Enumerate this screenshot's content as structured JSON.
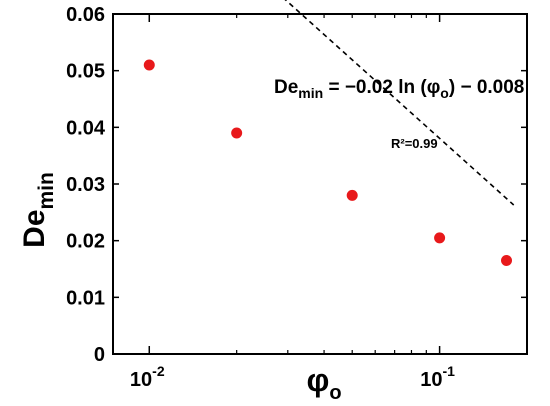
{
  "chart_data": {
    "type": "scatter",
    "x_scale": "log",
    "xlim": [
      0.0075,
      0.2
    ],
    "ylim": [
      0,
      0.06
    ],
    "y_ticks": [
      {
        "value": 0,
        "label": "0"
      },
      {
        "value": 0.01,
        "label": "0.01"
      },
      {
        "value": 0.02,
        "label": "0.02"
      },
      {
        "value": 0.03,
        "label": "0.03"
      },
      {
        "value": 0.04,
        "label": "0.04"
      },
      {
        "value": 0.05,
        "label": "0.05"
      },
      {
        "value": 0.06,
        "label": "0.06"
      }
    ],
    "x_major_ticks": [
      {
        "value": 0.01,
        "base": "10",
        "exp": "-2"
      },
      {
        "value": 0.1,
        "base": "10",
        "exp": "-1"
      }
    ],
    "x_minor_ticks": [
      0.02,
      0.03,
      0.04,
      0.05,
      0.06,
      0.07,
      0.08,
      0.09,
      0.2
    ],
    "xlabel": {
      "main": "φ",
      "sub": "o"
    },
    "ylabel": {
      "main": "De",
      "sub": "min"
    },
    "series": [
      {
        "color": "#e8191b",
        "points": [
          {
            "x": 0.01,
            "y": 0.051
          },
          {
            "x": 0.02,
            "y": 0.039
          },
          {
            "x": 0.05,
            "y": 0.028
          },
          {
            "x": 0.1,
            "y": 0.0205
          },
          {
            "x": 0.17,
            "y": 0.0165
          }
        ]
      }
    ],
    "fit_line": {
      "slope": -0.02,
      "intercept": -0.008,
      "x_range": [
        0.0085,
        0.18
      ],
      "style": "dashed",
      "color": "#000000"
    },
    "annotations": {
      "equation": {
        "de": "De",
        "de_sub": "min",
        "body": " = −0.02 ln (",
        "phi": "φ",
        "phi_sub": "o",
        "tail": ") − 0.008"
      },
      "r_squared": "R²=0.99"
    },
    "grid": false
  }
}
